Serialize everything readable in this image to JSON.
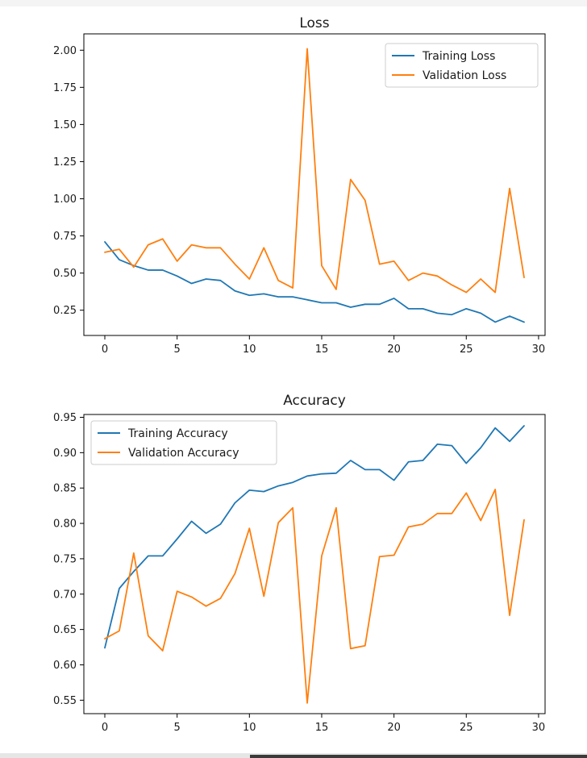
{
  "chart_data": [
    {
      "type": "line",
      "title": "Loss",
      "xlabel": "",
      "ylabel": "",
      "xlim": [
        -1.45,
        30.45
      ],
      "ylim": [
        0.08,
        2.11
      ],
      "xticks": [
        0,
        5,
        10,
        15,
        20,
        25,
        30
      ],
      "yticks": [
        0.25,
        0.5,
        0.75,
        1.0,
        1.25,
        1.5,
        1.75,
        2.0
      ],
      "ytick_labels": [
        "0.25",
        "0.50",
        "0.75",
        "1.00",
        "1.25",
        "1.50",
        "1.75",
        "2.00"
      ],
      "legend_position": "upper right",
      "x": [
        0,
        1,
        2,
        3,
        4,
        5,
        6,
        7,
        8,
        9,
        10,
        11,
        12,
        13,
        14,
        15,
        16,
        17,
        18,
        19,
        20,
        21,
        22,
        23,
        24,
        25,
        26,
        27,
        28,
        29
      ],
      "series": [
        {
          "name": "Training Loss",
          "color": "#1f77b4",
          "values": [
            0.71,
            0.59,
            0.55,
            0.52,
            0.52,
            0.48,
            0.43,
            0.46,
            0.45,
            0.38,
            0.35,
            0.36,
            0.34,
            0.34,
            0.32,
            0.3,
            0.3,
            0.27,
            0.29,
            0.29,
            0.33,
            0.26,
            0.26,
            0.23,
            0.22,
            0.26,
            0.23,
            0.17,
            0.21,
            0.17
          ]
        },
        {
          "name": "Validation Loss",
          "color": "#ff7f0e",
          "values": [
            0.64,
            0.66,
            0.54,
            0.69,
            0.73,
            0.58,
            0.69,
            0.67,
            0.67,
            0.56,
            0.46,
            0.67,
            0.45,
            0.4,
            2.01,
            0.55,
            0.39,
            1.13,
            0.99,
            0.56,
            0.58,
            0.45,
            0.5,
            0.48,
            0.42,
            0.37,
            0.46,
            0.37,
            1.07,
            0.47
          ]
        }
      ]
    },
    {
      "type": "line",
      "title": "Accuracy",
      "xlabel": "",
      "ylabel": "",
      "xlim": [
        -1.45,
        30.45
      ],
      "ylim": [
        0.531,
        0.954
      ],
      "xticks": [
        0,
        5,
        10,
        15,
        20,
        25,
        30
      ],
      "yticks": [
        0.55,
        0.6,
        0.65,
        0.7,
        0.75,
        0.8,
        0.85,
        0.9,
        0.95
      ],
      "ytick_labels": [
        "0.55",
        "0.60",
        "0.65",
        "0.70",
        "0.75",
        "0.80",
        "0.85",
        "0.90",
        "0.95"
      ],
      "legend_position": "upper left",
      "x": [
        0,
        1,
        2,
        3,
        4,
        5,
        6,
        7,
        8,
        9,
        10,
        11,
        12,
        13,
        14,
        15,
        16,
        17,
        18,
        19,
        20,
        21,
        22,
        23,
        24,
        25,
        26,
        27,
        28,
        29
      ],
      "series": [
        {
          "name": "Training Accuracy",
          "color": "#1f77b4",
          "values": [
            0.624,
            0.708,
            0.732,
            0.754,
            0.754,
            0.778,
            0.803,
            0.786,
            0.799,
            0.829,
            0.847,
            0.845,
            0.853,
            0.858,
            0.867,
            0.87,
            0.871,
            0.889,
            0.876,
            0.876,
            0.861,
            0.887,
            0.889,
            0.912,
            0.91,
            0.885,
            0.907,
            0.935,
            0.916,
            0.938
          ]
        },
        {
          "name": "Validation Accuracy",
          "color": "#ff7f0e",
          "values": [
            0.637,
            0.648,
            0.758,
            0.641,
            0.62,
            0.704,
            0.696,
            0.683,
            0.694,
            0.729,
            0.793,
            0.697,
            0.801,
            0.822,
            0.546,
            0.754,
            0.822,
            0.623,
            0.627,
            0.753,
            0.755,
            0.795,
            0.799,
            0.814,
            0.814,
            0.843,
            0.804,
            0.848,
            0.67,
            0.805
          ]
        }
      ]
    }
  ]
}
